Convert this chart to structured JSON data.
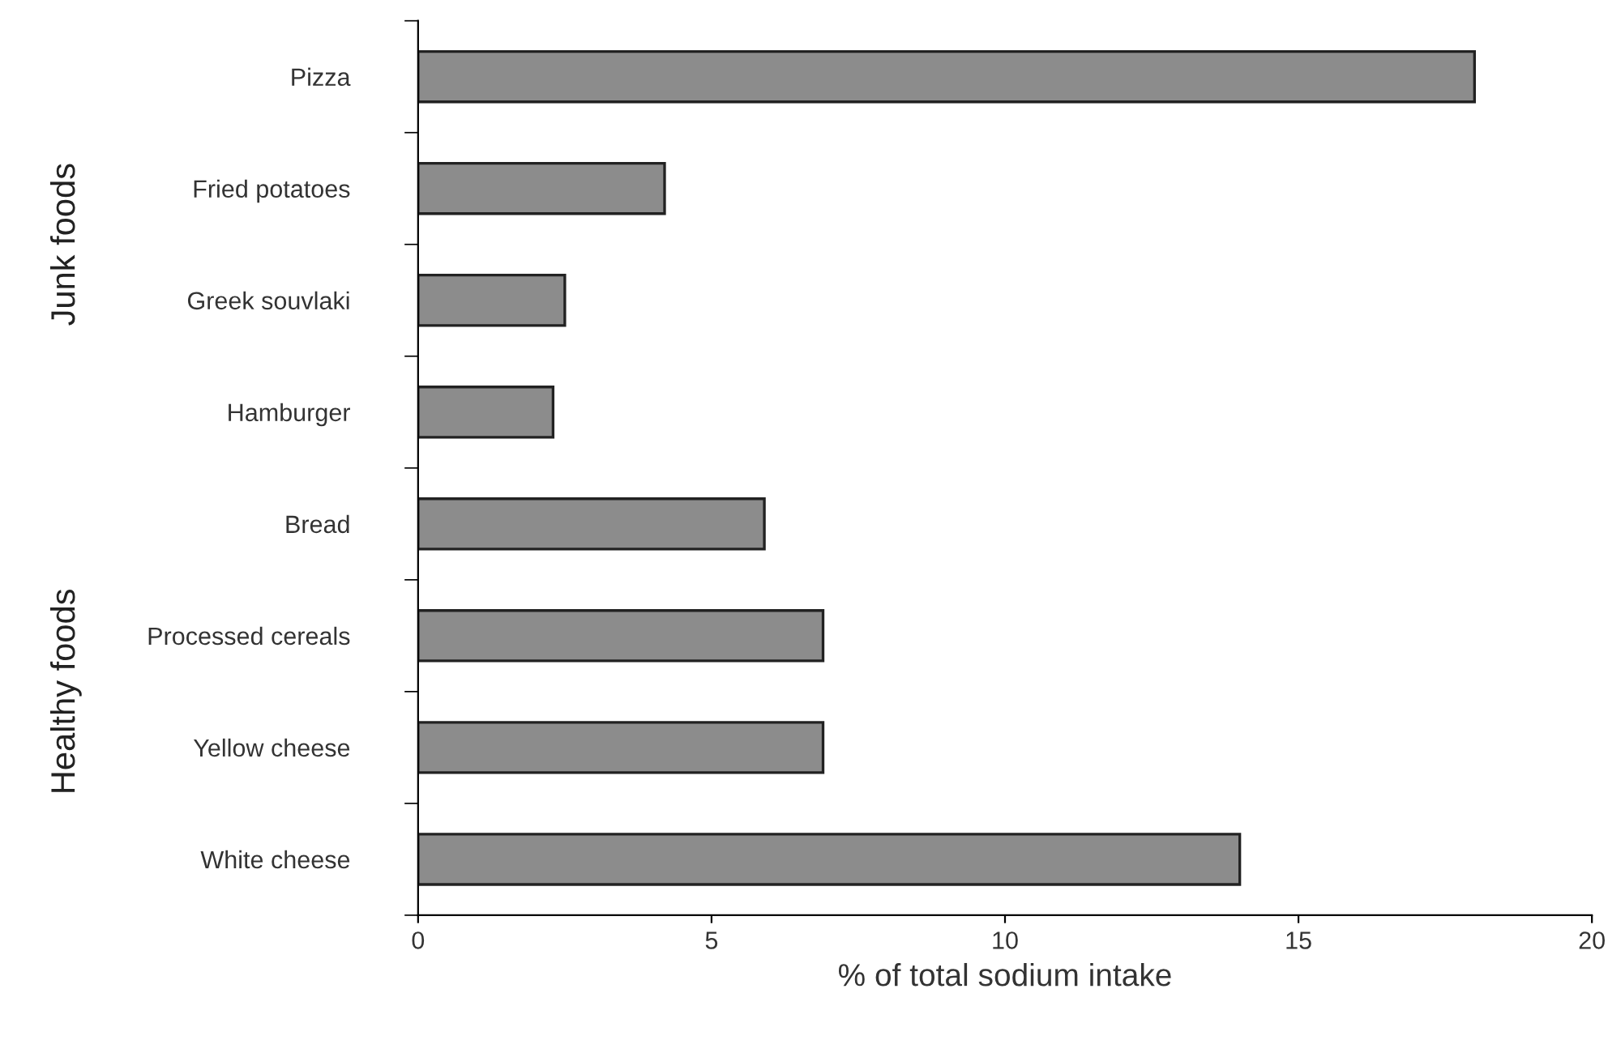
{
  "chart_data": {
    "type": "bar",
    "orientation": "horizontal",
    "xlabel": "% of total sodium intake",
    "categories": [
      "Pizza",
      "Fried potatoes",
      "Greek souvlaki",
      "Hamburger",
      "Bread",
      "Processed cereals",
      "Yellow cheese",
      "White cheese"
    ],
    "values": [
      18.0,
      4.2,
      2.5,
      2.3,
      5.9,
      6.9,
      6.9,
      14.0
    ],
    "color": "#8c8c8c",
    "xlim": [
      0,
      20
    ],
    "xticks": [
      0,
      5,
      10,
      15,
      20
    ],
    "annotations": [
      "Junk foods",
      "Healthy foods"
    ],
    "grid": false,
    "legend": false
  }
}
